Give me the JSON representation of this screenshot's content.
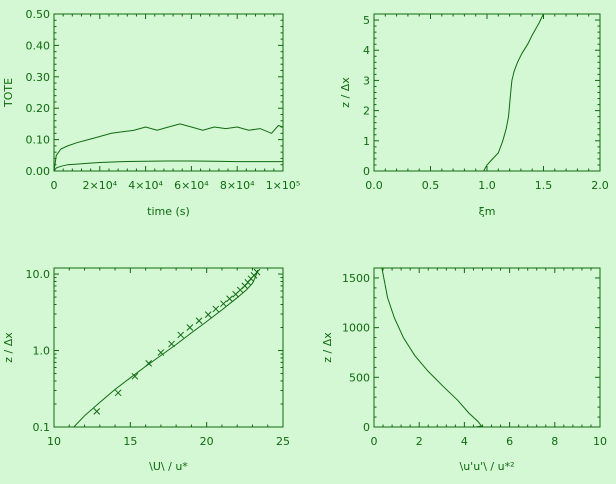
{
  "colors": {
    "background": "#d4f7d4",
    "ink": "#0f6b0f"
  },
  "chart_data": [
    {
      "type": "line",
      "xlabel": "time (s)",
      "ylabel": "TOTE",
      "xlim": [
        0,
        100000
      ],
      "ylim": [
        0,
        0.5
      ],
      "x_scale": "linear",
      "y_scale": "linear",
      "x_ticks": [
        {
          "value": 0,
          "label": "0"
        },
        {
          "value": 20000,
          "label": "2×10⁴"
        },
        {
          "value": 40000,
          "label": "4×10⁴"
        },
        {
          "value": 60000,
          "label": "6×10⁴"
        },
        {
          "value": 80000,
          "label": "8×10⁴"
        },
        {
          "value": 100000,
          "label": "1×10⁵"
        }
      ],
      "y_ticks": [
        {
          "value": 0.0,
          "label": "0.00"
        },
        {
          "value": 0.1,
          "label": "0.10"
        },
        {
          "value": 0.2,
          "label": "0.20"
        },
        {
          "value": 0.3,
          "label": "0.30"
        },
        {
          "value": 0.4,
          "label": "0.40"
        },
        {
          "value": 0.5,
          "label": "0.50"
        }
      ],
      "series": [
        {
          "style": "line",
          "x": [
            0,
            1000,
            3000,
            6000,
            10000,
            15000,
            20000,
            25000,
            30000,
            35000,
            40000,
            45000,
            50000,
            55000,
            60000,
            65000,
            70000,
            75000,
            80000,
            85000,
            90000,
            95000,
            98000,
            100000
          ],
          "y": [
            0.0,
            0.05,
            0.07,
            0.08,
            0.09,
            0.1,
            0.11,
            0.12,
            0.125,
            0.13,
            0.14,
            0.13,
            0.14,
            0.15,
            0.14,
            0.13,
            0.14,
            0.135,
            0.14,
            0.13,
            0.135,
            0.12,
            0.145,
            0.14
          ]
        },
        {
          "style": "line",
          "x": [
            0,
            1000,
            3000,
            6000,
            10000,
            15000,
            20000,
            30000,
            40000,
            50000,
            60000,
            70000,
            80000,
            90000,
            100000
          ],
          "y": [
            0.0,
            0.01,
            0.015,
            0.02,
            0.022,
            0.025,
            0.027,
            0.03,
            0.031,
            0.032,
            0.032,
            0.031,
            0.03,
            0.03,
            0.03
          ]
        }
      ]
    },
    {
      "type": "line",
      "xlabel": "ξm",
      "ylabel": "z / Δx",
      "xlim": [
        0,
        2
      ],
      "ylim": [
        0,
        5.2
      ],
      "x_scale": "linear",
      "y_scale": "linear",
      "x_ticks": [
        {
          "value": 0.0,
          "label": "0.0"
        },
        {
          "value": 0.5,
          "label": "0.5"
        },
        {
          "value": 1.0,
          "label": "1.0"
        },
        {
          "value": 1.5,
          "label": "1.5"
        },
        {
          "value": 2.0,
          "label": "2.0"
        }
      ],
      "y_ticks": [
        {
          "value": 0,
          "label": "0"
        },
        {
          "value": 1,
          "label": "1"
        },
        {
          "value": 2,
          "label": "2"
        },
        {
          "value": 3,
          "label": "3"
        },
        {
          "value": 4,
          "label": "4"
        },
        {
          "value": 5,
          "label": "5"
        }
      ],
      "series": [
        {
          "style": "line",
          "x": [
            0.97,
            1.0,
            1.05,
            1.1,
            1.14,
            1.17,
            1.19,
            1.2,
            1.21,
            1.22,
            1.24,
            1.27,
            1.31,
            1.36,
            1.4,
            1.43,
            1.46,
            1.48,
            1.5
          ],
          "y": [
            0.0,
            0.2,
            0.4,
            0.6,
            1.0,
            1.4,
            1.8,
            2.2,
            2.6,
            3.0,
            3.3,
            3.6,
            3.9,
            4.2,
            4.5,
            4.7,
            4.9,
            5.05,
            5.2
          ]
        }
      ]
    },
    {
      "type": "line",
      "xlabel": "\\U\\ / u*",
      "ylabel": "z / Δx",
      "xlim": [
        10,
        25
      ],
      "ylim": [
        0.1,
        12
      ],
      "x_scale": "linear",
      "y_scale": "log",
      "x_ticks": [
        {
          "value": 10,
          "label": "10"
        },
        {
          "value": 15,
          "label": "15"
        },
        {
          "value": 20,
          "label": "20"
        },
        {
          "value": 25,
          "label": "25"
        }
      ],
      "y_ticks": [
        {
          "value": 0.1,
          "label": "0.1"
        },
        {
          "value": 1.0,
          "label": "1.0"
        },
        {
          "value": 10.0,
          "label": "10.0"
        }
      ],
      "series": [
        {
          "style": "line",
          "x": [
            11.3,
            12.0,
            13.0,
            14.0,
            15.0,
            16.0,
            17.0,
            18.0,
            19.0,
            20.0,
            21.0,
            22.0,
            22.6,
            23.0,
            23.2,
            23.35
          ],
          "y": [
            0.1,
            0.14,
            0.21,
            0.31,
            0.44,
            0.62,
            0.86,
            1.2,
            1.7,
            2.4,
            3.4,
            4.9,
            6.2,
            7.6,
            9.2,
            11.3
          ]
        },
        {
          "style": "markers",
          "marker": "x",
          "x": [
            12.8,
            14.2,
            15.3,
            16.2,
            17.0,
            17.7,
            18.3,
            18.9,
            19.5,
            20.1,
            20.6,
            21.1,
            21.5,
            21.9,
            22.2,
            22.5,
            22.7,
            22.9,
            23.1,
            23.3
          ],
          "y": [
            0.16,
            0.28,
            0.46,
            0.68,
            0.94,
            1.22,
            1.6,
            2.0,
            2.45,
            2.95,
            3.5,
            4.1,
            4.75,
            5.45,
            6.2,
            7.0,
            7.8,
            8.7,
            9.6,
            10.6
          ]
        }
      ]
    },
    {
      "type": "line",
      "xlabel": "\\u'u'\\ / u*²",
      "ylabel": "z / Δx",
      "xlim": [
        0,
        10
      ],
      "ylim": [
        0,
        1600
      ],
      "x_scale": "linear",
      "y_scale": "linear",
      "x_ticks": [
        {
          "value": 0,
          "label": "0"
        },
        {
          "value": 2,
          "label": "2"
        },
        {
          "value": 4,
          "label": "4"
        },
        {
          "value": 6,
          "label": "6"
        },
        {
          "value": 8,
          "label": "8"
        },
        {
          "value": 10,
          "label": "10"
        }
      ],
      "y_ticks": [
        {
          "value": 0,
          "label": "0"
        },
        {
          "value": 500,
          "label": "500"
        },
        {
          "value": 1000,
          "label": "1000"
        },
        {
          "value": 1500,
          "label": "1500"
        }
      ],
      "series": [
        {
          "style": "line",
          "x": [
            0.35,
            0.6,
            0.9,
            1.3,
            1.8,
            2.4,
            3.1,
            3.7,
            4.2,
            4.6,
            4.75,
            4.5,
            3.5,
            2.0,
            0.8,
            0.3
          ],
          "y": [
            1600,
            1300,
            1100,
            900,
            720,
            560,
            400,
            270,
            140,
            55,
            10,
            0,
            -3,
            -5,
            -5,
            -5
          ]
        }
      ]
    }
  ]
}
